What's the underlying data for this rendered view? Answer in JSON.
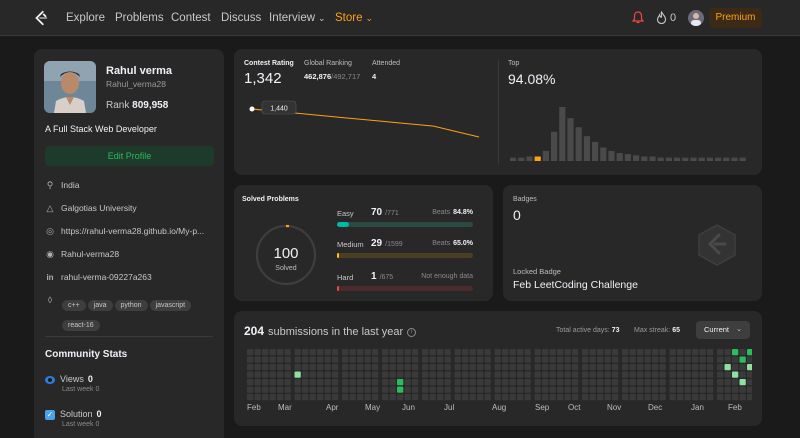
{
  "nav": {
    "items": [
      "Explore",
      "Problems",
      "Contest",
      "Discuss",
      "Interview",
      "Store"
    ],
    "fire_count": "0",
    "premium_label": "Premium"
  },
  "profile": {
    "name": "Rahul verma",
    "handle": "Rahul_verma28",
    "rank_label": "Rank",
    "rank_value": "809,958",
    "bio": "A Full Stack Web Developer",
    "edit_label": "Edit Profile",
    "location": "India",
    "university": "Galgotias University",
    "website": "https://rahul-verma28.github.io/My-p...",
    "github": "Rahul-verma28",
    "linkedin": "rahul-verma-09227a263",
    "tags": [
      "c++",
      "java",
      "python",
      "javascript",
      "react-16"
    ]
  },
  "community": {
    "title": "Community Stats",
    "views_label": "Views",
    "views_value": "0",
    "views_sub": "Last week",
    "views_sub_value": "0",
    "solution_label": "Solution",
    "solution_value": "0",
    "solution_sub": "Last week",
    "solution_sub_value": "0"
  },
  "contest": {
    "rating_label": "Contest Rating",
    "rating_value": "1,342",
    "ranking_label": "Global Ranking",
    "ranking_value": "462,876",
    "ranking_total": "/492,717",
    "attended_label": "Attended",
    "attended_value": "4",
    "tooltip_value": "1,440",
    "top_label": "Top",
    "top_value": "94.08%",
    "accent": "#ffa116"
  },
  "solved": {
    "title": "Solved Problems",
    "total": "100",
    "total_label": "Solved",
    "easy": {
      "label": "Easy",
      "count": "70",
      "total": "/771",
      "beats_label": "Beats",
      "beats": "84.8%",
      "fraction": 0.091,
      "color": "#00b8a3",
      "track": "#2a4a44"
    },
    "medium": {
      "label": "Medium",
      "count": "29",
      "total": "/1599",
      "beats_label": "Beats",
      "beats": "65.0%",
      "fraction": 0.018,
      "color": "#ffc01e",
      "track": "#4a3f22"
    },
    "hard": {
      "label": "Hard",
      "count": "1",
      "total": "/675",
      "beats_text": "Not enough data",
      "fraction": 0.0015,
      "color": "#ef4743",
      "track": "#4a2a2a"
    }
  },
  "badges": {
    "label": "Badges",
    "count": "0",
    "locked_label": "Locked Badge",
    "locked_name": "Feb LeetCoding Challenge"
  },
  "submissions": {
    "count": "204",
    "title": "submissions in the last year",
    "active_days_label": "Total active days:",
    "active_days": "73",
    "max_streak_label": "Max streak:",
    "max_streak": "65",
    "select_value": "Current",
    "months": [
      "Feb",
      "Mar",
      "Apr",
      "May",
      "Jun",
      "Jul",
      "Aug",
      "Sep",
      "Oct",
      "Nov",
      "Dec",
      "Jan",
      "Feb"
    ]
  },
  "chart_data": [
    {
      "type": "line",
      "title": "Contest Rating",
      "series": [
        {
          "values": [
            1440,
            1425,
            1410,
            1395,
            1380,
            1342
          ]
        }
      ],
      "highlight": "1,440"
    },
    {
      "type": "bar",
      "title": "Top",
      "values": [
        3,
        3,
        4,
        4,
        9,
        26,
        48,
        38,
        30,
        22,
        17,
        12,
        9,
        7,
        6,
        5,
        4,
        4,
        3,
        3,
        3,
        3,
        3,
        3,
        3,
        3,
        3,
        3,
        3
      ],
      "highlight_index": 3
    }
  ]
}
